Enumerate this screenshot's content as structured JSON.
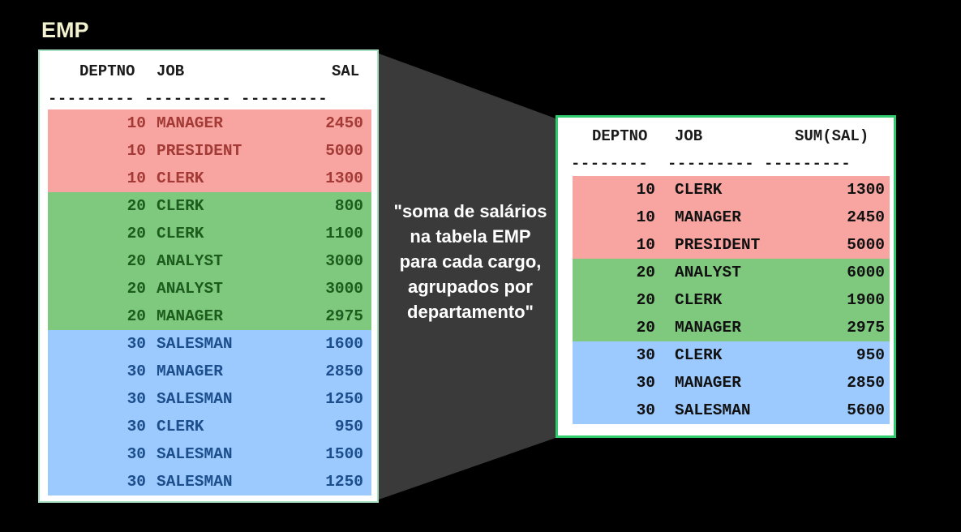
{
  "title": "EMP",
  "caption": "\"soma de salários na tabela EMP para cada cargo, agrupados por departamento\"",
  "colors": {
    "dept10": "#f8a5a2",
    "dept20": "#7fc97f",
    "dept30": "#9ccaff",
    "result_border": "#2ecc6e",
    "funnel": "#3a3a3a"
  },
  "source_table": {
    "headers": {
      "deptno": "DEPTNO",
      "job": "JOB",
      "sal": "SAL"
    },
    "separator": "--------- --------- ---------",
    "rows": [
      {
        "deptno": "10",
        "job": "MANAGER",
        "sal": "2450"
      },
      {
        "deptno": "10",
        "job": "PRESIDENT",
        "sal": "5000"
      },
      {
        "deptno": "10",
        "job": "CLERK",
        "sal": "1300"
      },
      {
        "deptno": "20",
        "job": "CLERK",
        "sal": "800"
      },
      {
        "deptno": "20",
        "job": "CLERK",
        "sal": "1100"
      },
      {
        "deptno": "20",
        "job": "ANALYST",
        "sal": "3000"
      },
      {
        "deptno": "20",
        "job": "ANALYST",
        "sal": "3000"
      },
      {
        "deptno": "20",
        "job": "MANAGER",
        "sal": "2975"
      },
      {
        "deptno": "30",
        "job": "SALESMAN",
        "sal": "1600"
      },
      {
        "deptno": "30",
        "job": "MANAGER",
        "sal": "2850"
      },
      {
        "deptno": "30",
        "job": "SALESMAN",
        "sal": "1250"
      },
      {
        "deptno": "30",
        "job": "CLERK",
        "sal": "950"
      },
      {
        "deptno": "30",
        "job": "SALESMAN",
        "sal": "1500"
      },
      {
        "deptno": "30",
        "job": "SALESMAN",
        "sal": "1250"
      }
    ]
  },
  "result_table": {
    "headers": {
      "deptno": "DEPTNO",
      "job": "JOB",
      "sal": "SUM(SAL)"
    },
    "separator": "--------  --------- ---------",
    "rows": [
      {
        "deptno": "10",
        "job": "CLERK",
        "sal": "1300"
      },
      {
        "deptno": "10",
        "job": "MANAGER",
        "sal": "2450"
      },
      {
        "deptno": "10",
        "job": "PRESIDENT",
        "sal": "5000"
      },
      {
        "deptno": "20",
        "job": "ANALYST",
        "sal": "6000"
      },
      {
        "deptno": "20",
        "job": "CLERK",
        "sal": "1900"
      },
      {
        "deptno": "20",
        "job": "MANAGER",
        "sal": "2975"
      },
      {
        "deptno": "30",
        "job": "CLERK",
        "sal": "950"
      },
      {
        "deptno": "30",
        "job": "MANAGER",
        "sal": "2850"
      },
      {
        "deptno": "30",
        "job": "SALESMAN",
        "sal": "5600"
      }
    ]
  }
}
